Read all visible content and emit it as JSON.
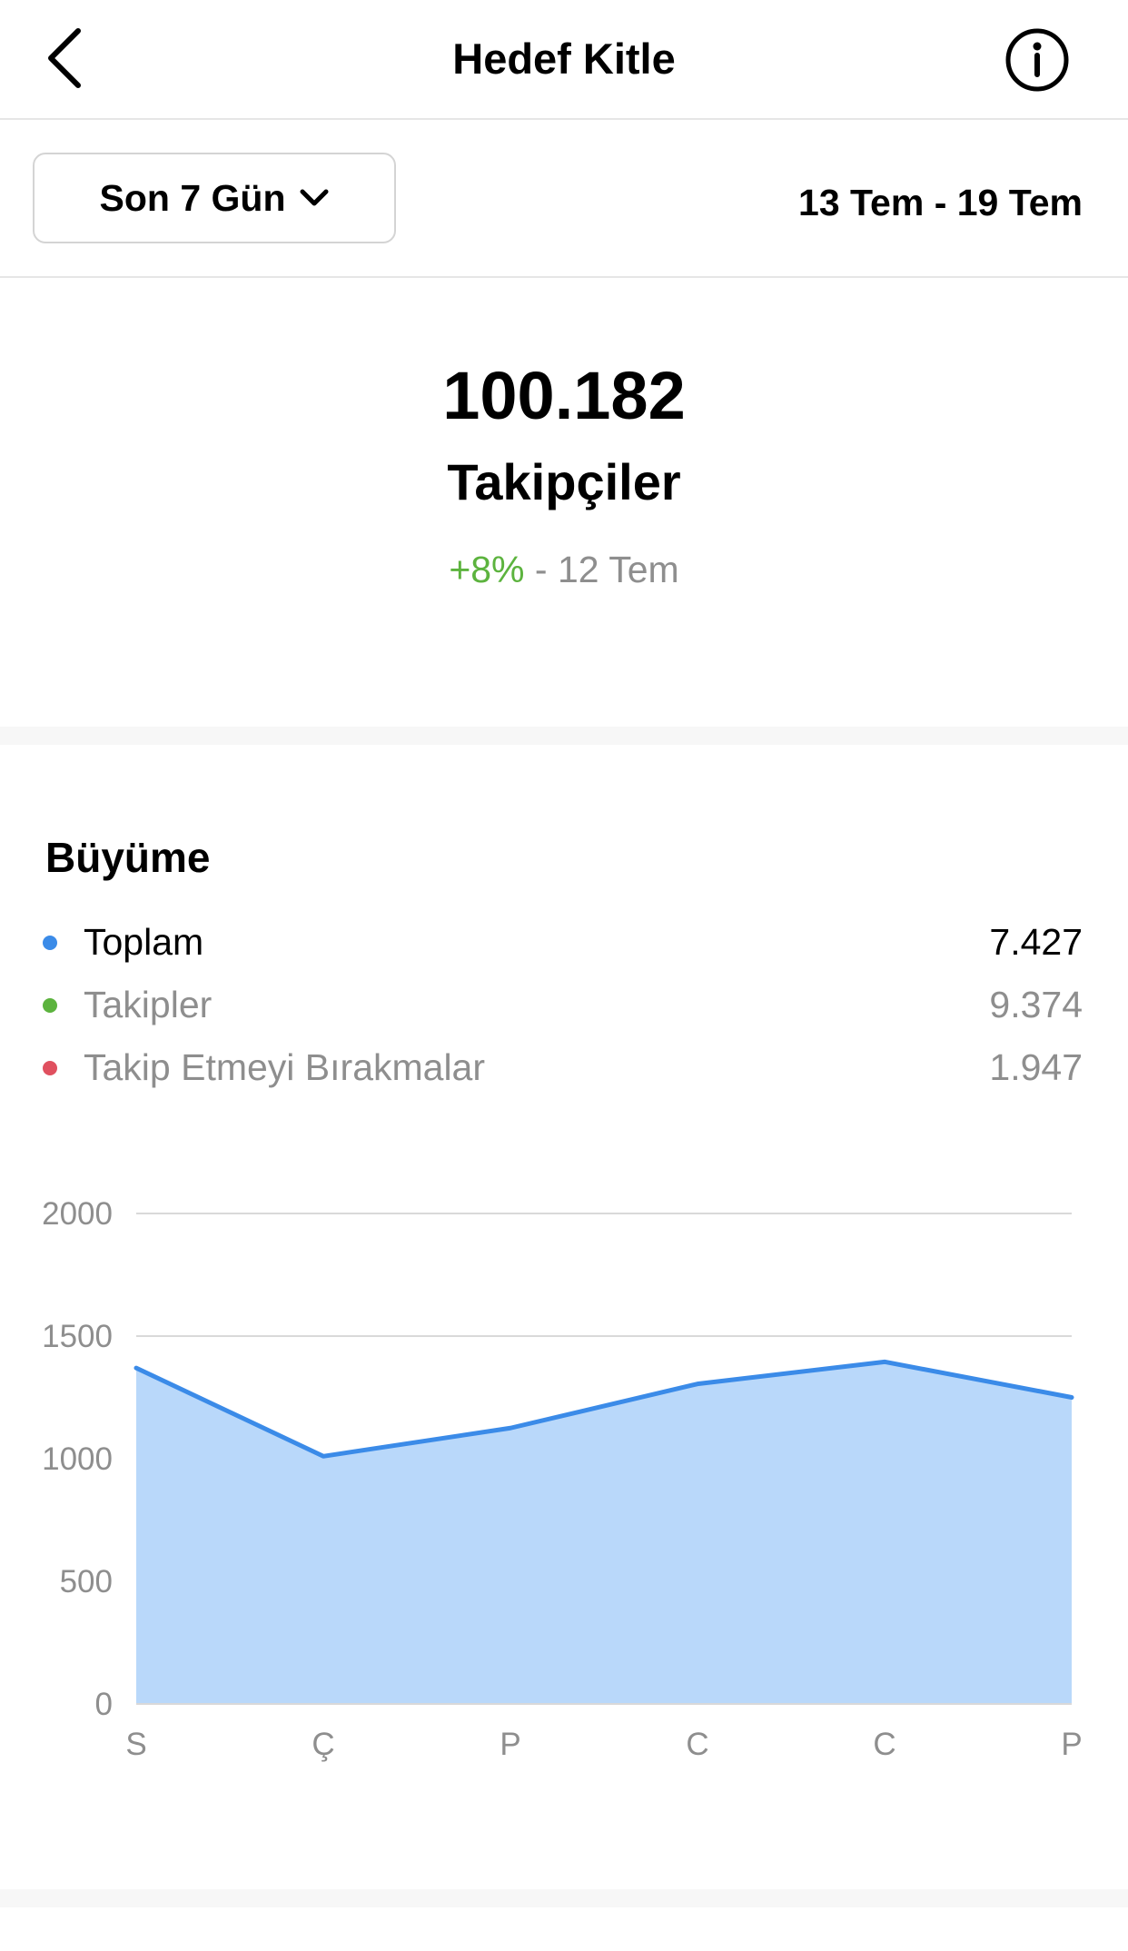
{
  "nav": {
    "title": "Hedef Kitle",
    "back_icon": "chevron-left-icon",
    "info_icon": "info-circle-icon"
  },
  "period": {
    "selected": "Son 7 Gün",
    "dropdown_icon": "chevron-down-icon",
    "range": "13 Tem - 19 Tem"
  },
  "summary": {
    "count": "100.182",
    "label": "Takipçiler",
    "change": "+8%",
    "change_suffix": " - 12 Tem"
  },
  "growth": {
    "title": "Büyüme",
    "legend": [
      {
        "label": "Toplam",
        "value": "7.427",
        "color": "#3b8be8"
      },
      {
        "label": "Takipler",
        "value": "9.374",
        "color": "#5cb33e"
      },
      {
        "label": "Takip Etmeyi Bırakmalar",
        "value": "1.947",
        "color": "#e0505f"
      }
    ]
  },
  "colors": {
    "line": "#3b8be8",
    "area": "#b9d8fa",
    "positive": "#5cb33e",
    "muted": "#8e8e8e"
  },
  "chart_data": {
    "type": "area",
    "categories": [
      "S",
      "Ç",
      "P",
      "C",
      "C",
      "P"
    ],
    "series": [
      {
        "name": "Toplam",
        "values": [
          1370,
          1010,
          1125,
          1305,
          1395,
          1250
        ]
      }
    ],
    "ylim": [
      0,
      2000
    ],
    "yticks": [
      "0",
      "500",
      "1000",
      "1500",
      "2000"
    ],
    "grid": true
  }
}
